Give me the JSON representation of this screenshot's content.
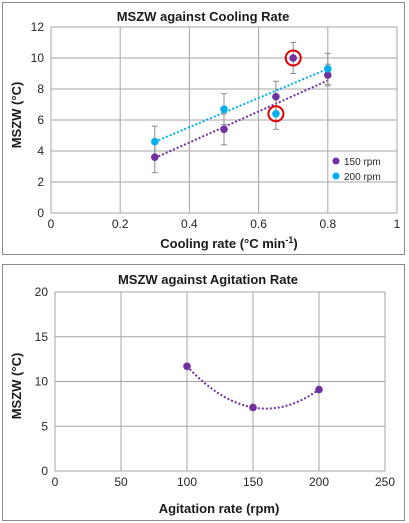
{
  "chart_data": [
    {
      "type": "scatter",
      "title": "MSZW against Cooling Rate",
      "xlabel_main": "Cooling rate (°C min",
      "xlabel_sup": "-1",
      "xlabel_end": ")",
      "ylabel": "MSZW (°C)",
      "xlim": [
        0,
        1
      ],
      "ylim": [
        0,
        12
      ],
      "xticks": [
        "0",
        "0.2",
        "0.4",
        "0.6",
        "0.8",
        "1"
      ],
      "yticks": [
        "0",
        "2",
        "4",
        "6",
        "8",
        "10",
        "12"
      ],
      "grid": true,
      "legend_position": "bottom-right",
      "series": [
        {
          "name": "150 rpm",
          "color": "#7030a0",
          "x": [
            0.3,
            0.5,
            0.65,
            0.7,
            0.8
          ],
          "y": [
            3.6,
            5.4,
            7.5,
            10.0,
            8.9
          ],
          "err": [
            1.0,
            1.0,
            1.0,
            1.0,
            0.7
          ],
          "trend": [
            [
              0.3,
              3.55
            ],
            [
              0.8,
              8.55
            ]
          ]
        },
        {
          "name": "200 rpm",
          "color": "#00b0f0",
          "x": [
            0.3,
            0.5,
            0.65,
            0.8
          ],
          "y": [
            4.6,
            6.7,
            6.4,
            9.3
          ],
          "err": [
            1.0,
            1.0,
            1.0,
            1.0
          ],
          "trend": [
            [
              0.3,
              4.6
            ],
            [
              0.8,
              9.3
            ]
          ]
        }
      ],
      "highlights": [
        {
          "x": 0.7,
          "y": 10.0,
          "color": "#e00000"
        },
        {
          "x": 0.65,
          "y": 6.4,
          "color": "#e00000"
        }
      ]
    },
    {
      "type": "scatter",
      "title": "MSZW against Agitation Rate",
      "xlabel": "Agitation rate (rpm)",
      "ylabel": "MSZW (°C)",
      "xlim": [
        0,
        250
      ],
      "ylim": [
        0,
        20
      ],
      "xticks": [
        "0",
        "50",
        "100",
        "150",
        "200",
        "250"
      ],
      "yticks": [
        "0",
        "5",
        "10",
        "15",
        "20"
      ],
      "grid": true,
      "series": [
        {
          "color": "#7030a0",
          "x": [
            100,
            150,
            200
          ],
          "y": [
            11.7,
            7.1,
            9.1
          ],
          "trend_type": "quadratic"
        }
      ]
    }
  ]
}
